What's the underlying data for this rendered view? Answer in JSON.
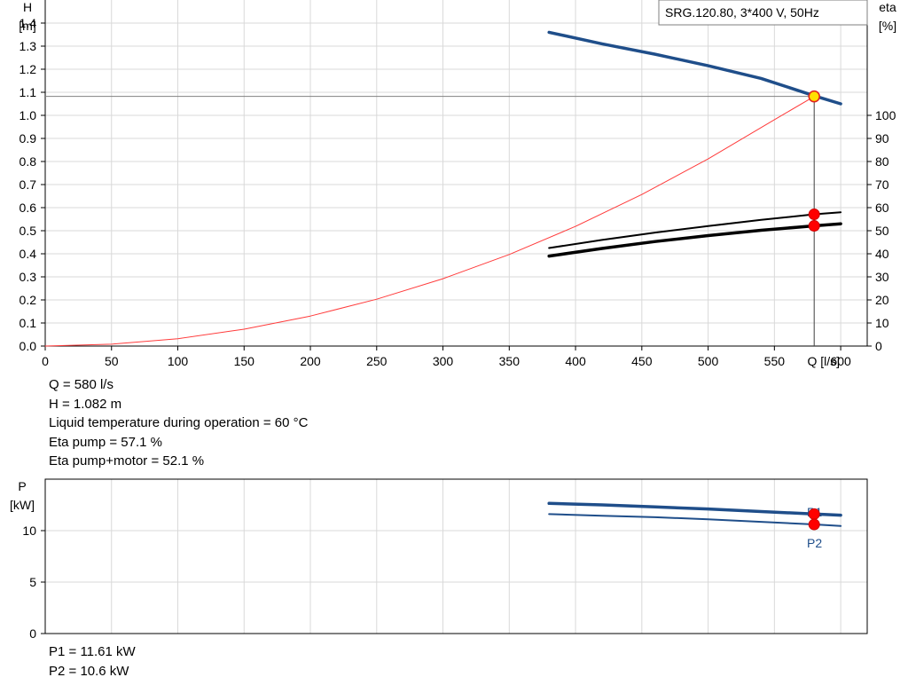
{
  "chart_data": [
    {
      "type": "line",
      "title": "SRG.120.80, 3*400 V, 50Hz",
      "xlabel": "Q [l/s]",
      "ylabel": [
        "H",
        "[m]"
      ],
      "y2label": [
        "eta",
        "[%]"
      ],
      "xlim": [
        0,
        620
      ],
      "ylim": [
        0,
        1.5
      ],
      "y2lim": [
        0,
        100
      ],
      "x_ticks": [
        "0",
        "50",
        "100",
        "150",
        "200",
        "250",
        "300",
        "350",
        "400",
        "450",
        "500",
        "550",
        "600"
      ],
      "y_ticks": [
        "0.0",
        "0.1",
        "0.2",
        "0.3",
        "0.4",
        "0.5",
        "0.6",
        "0.7",
        "0.8",
        "0.9",
        "1.0",
        "1.1",
        "1.2",
        "1.3",
        "1.4"
      ],
      "y2_ticks": [
        "0",
        "10",
        "20",
        "30",
        "40",
        "50",
        "60",
        "70",
        "80",
        "90",
        "100"
      ],
      "grid": true,
      "series": [
        {
          "color": "#1f4e8a",
          "axis": "left",
          "x": [
            380,
            420,
            460,
            500,
            540,
            580,
            600
          ],
          "y": [
            1.36,
            1.31,
            1.265,
            1.215,
            1.16,
            1.085,
            1.05
          ]
        },
        {
          "color": "#ff3b3b",
          "axis": "left",
          "x": [
            0,
            50,
            100,
            150,
            200,
            250,
            300,
            350,
            400,
            450,
            500,
            550,
            580
          ],
          "y": [
            0,
            0.008,
            0.032,
            0.073,
            0.13,
            0.203,
            0.292,
            0.397,
            0.519,
            0.657,
            0.811,
            0.981,
            1.082
          ]
        },
        {
          "color": "#000000",
          "axis": "right",
          "x": [
            380,
            420,
            460,
            500,
            540,
            580,
            600
          ],
          "y": [
            42.5,
            46,
            49.2,
            52,
            54.7,
            57.1,
            58
          ]
        },
        {
          "color": "#000000",
          "axis": "right",
          "x": [
            380,
            420,
            460,
            500,
            540,
            580,
            600
          ],
          "y": [
            39,
            42.3,
            45.3,
            47.9,
            50.2,
            52.1,
            53
          ]
        }
      ],
      "operating_point": {
        "x": 580,
        "y": 1.082,
        "eta_pump": 57.1,
        "eta_total": 52.1
      }
    },
    {
      "type": "line",
      "xlabel": "",
      "ylabel": [
        "P",
        "[kW]"
      ],
      "xlim": [
        0,
        620
      ],
      "ylim": [
        0,
        15
      ],
      "y_ticks": [
        "0",
        "5",
        "10"
      ],
      "grid": true,
      "series": [
        {
          "name": "P1",
          "color": "#1f4e8a",
          "x": [
            380,
            420,
            460,
            500,
            540,
            580,
            600
          ],
          "y": [
            12.65,
            12.5,
            12.3,
            12.1,
            11.85,
            11.61,
            11.5
          ]
        },
        {
          "name": "P2",
          "color": "#1f4e8a",
          "x": [
            380,
            420,
            460,
            500,
            540,
            580,
            600
          ],
          "y": [
            11.6,
            11.45,
            11.3,
            11.1,
            10.85,
            10.6,
            10.45
          ]
        }
      ],
      "operating_points": [
        11.61,
        10.6
      ]
    }
  ],
  "info_top": [
    "Q = 580 l/s",
    "H = 1.082 m",
    "Liquid temperature during operation = 60 °C",
    "Eta pump = 57.1 %",
    "Eta pump+motor = 52.1 %"
  ],
  "info_bottom": [
    "P1 = 11.61 kW",
    "P2 = 10.6 kW"
  ]
}
